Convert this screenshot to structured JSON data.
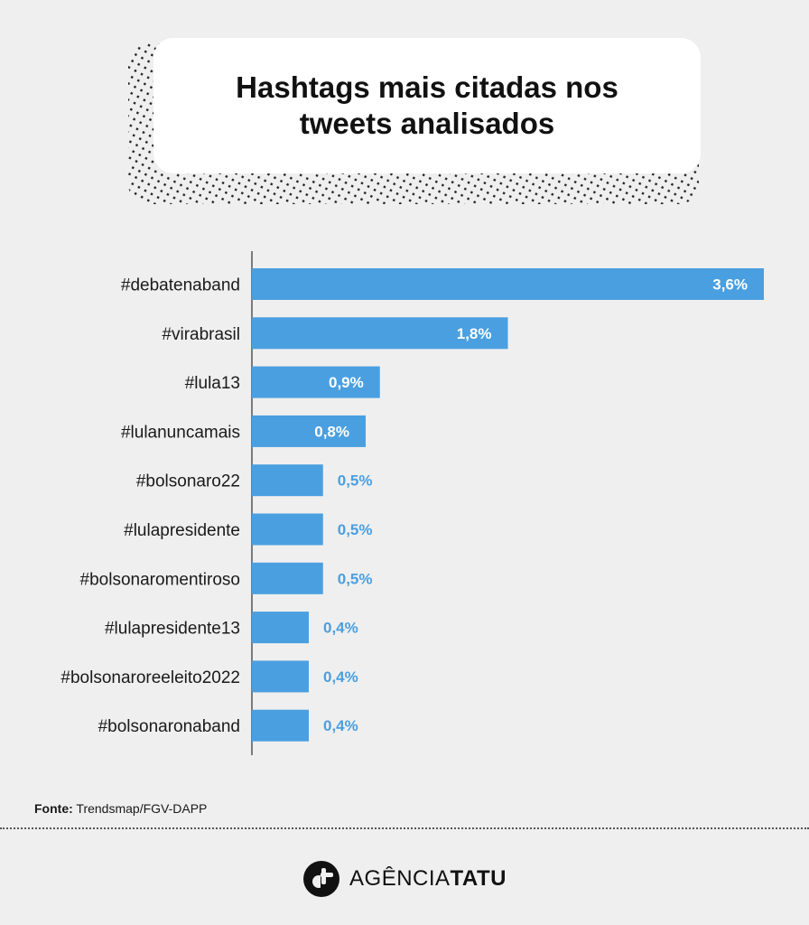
{
  "chart_data": {
    "type": "bar",
    "orientation": "horizontal",
    "title": "Hashtags mais citadas nos tweets analisados",
    "categories": [
      "#debatenaband",
      "#virabrasil",
      "#lula13",
      "#lulanuncamais",
      "#bolsonaro22",
      "#lulapresidente",
      "#bolsonaromentiroso",
      "#lulapresidente13",
      "#bolsonaroreeleito2022",
      "#bolsonaronaband"
    ],
    "values": [
      3.6,
      1.8,
      0.9,
      0.8,
      0.5,
      0.5,
      0.5,
      0.4,
      0.4,
      0.4
    ],
    "value_labels": [
      "3,6%",
      "1,8%",
      "0,9%",
      "0,8%",
      "0,5%",
      "0,5%",
      "0,5%",
      "0,4%",
      "0,4%",
      "0,4%"
    ],
    "unit": "%",
    "xlim": [
      0,
      3.6
    ],
    "grid": false,
    "legend": "none",
    "colors": {
      "bar": "#4a9fe0",
      "label_inside": "#ffffff",
      "label_outside": "#4a9fe0"
    }
  },
  "footer": {
    "source_label": "Fonte:",
    "source_text": "Trendsmap/FGV-DAPP",
    "brand_light": "AGÊNCIA",
    "brand_bold": "TATU",
    "logo_icon": "tatu-logo-icon"
  }
}
